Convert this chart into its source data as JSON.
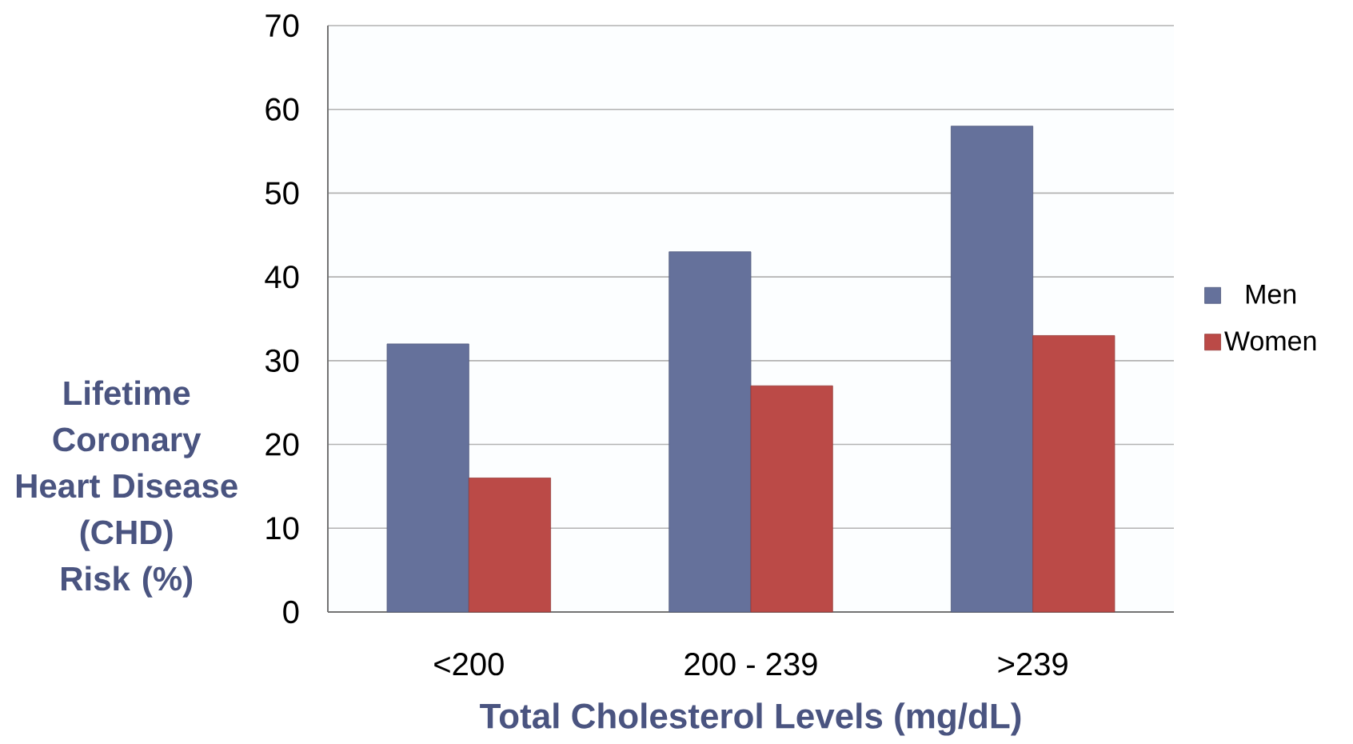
{
  "chart_data": {
    "type": "bar",
    "xlabel": "Total Cholesterol Levels (mg/dL)",
    "ylabel": "Lifetime Coronary Heart Disease (CHD) Risk (%)",
    "categories": [
      "<200",
      "200 - 239",
      ">239"
    ],
    "series": [
      {
        "name": "Men",
        "color": "#65719b",
        "values": [
          32,
          43,
          58
        ]
      },
      {
        "name": "Women",
        "color": "#bb4a47",
        "values": [
          16,
          27,
          33
        ]
      }
    ],
    "ylim": [
      0,
      70
    ],
    "yticks": [
      0,
      10,
      20,
      30,
      40,
      50,
      60,
      70
    ],
    "grid": "y",
    "legend": "right"
  }
}
